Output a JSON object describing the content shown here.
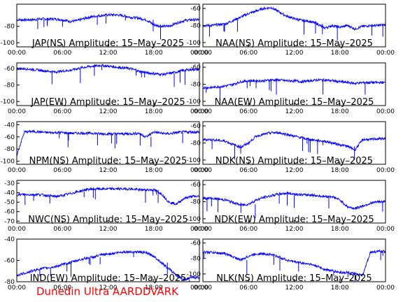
{
  "footer": {
    "text": "Dunedin Ultra AARDDVARK",
    "color": "#ff0000"
  },
  "colors": {
    "trace": "#0000ff",
    "axes": "#000000",
    "background": "#ffffff"
  },
  "chart_data": [
    {
      "type": "line",
      "title": "JAP(NS) Amplitude: 15–May–2025",
      "x_ticks": [
        "00:00",
        "06:00",
        "12:00",
        "18:00",
        "00:00"
      ],
      "y_ticks": [
        "-100",
        "-80"
      ],
      "ylim": [
        -105,
        -53
      ],
      "xlim_hours": [
        0,
        24
      ],
      "x_hours": [
        0,
        1,
        2,
        3,
        4,
        5,
        6,
        7,
        8,
        9,
        10,
        11,
        12,
        13,
        14,
        15,
        16,
        17,
        18,
        19,
        20,
        21,
        22,
        23,
        24
      ],
      "values": [
        -72,
        -72,
        -72,
        -71,
        -71,
        -71,
        -72,
        -74,
        -73,
        -70,
        -68,
        -67,
        -66,
        -66,
        -67,
        -69,
        -70,
        -72,
        -78,
        -80,
        -80,
        -76,
        -73,
        -72,
        -72
      ]
    },
    {
      "type": "line",
      "title": "NAA(NS) Amplitude: 15–May–2025",
      "x_ticks": [
        "00:00",
        "06:00",
        "12:00",
        "18:00",
        "00:00"
      ],
      "y_ticks": [
        "-100",
        "-80",
        "-60"
      ],
      "ylim": [
        -105,
        -55
      ],
      "xlim_hours": [
        0,
        24
      ],
      "x_hours": [
        0,
        1,
        2,
        3,
        4,
        5,
        6,
        7,
        8,
        9,
        10,
        11,
        12,
        13,
        14,
        15,
        16,
        17,
        18,
        19,
        20,
        21,
        22,
        23,
        24
      ],
      "values": [
        -80,
        -80,
        -79,
        -78,
        -74,
        -70,
        -66,
        -63,
        -60,
        -59,
        -64,
        -69,
        -72,
        -74,
        -75,
        -78,
        -83,
        -80,
        -82,
        -80,
        -84,
        -81,
        -80,
        -80,
        -79
      ]
    },
    {
      "type": "line",
      "title": "JAP(EW) Amplitude: 15–May–2025",
      "x_ticks": [
        "00:00",
        "06:00",
        "12:00",
        "18:00",
        "00:00"
      ],
      "y_ticks": [
        "-100",
        "-80",
        "-60"
      ],
      "ylim": [
        -105,
        -53
      ],
      "xlim_hours": [
        0,
        24
      ],
      "x_hours": [
        0,
        1,
        2,
        3,
        4,
        5,
        6,
        7,
        8,
        9,
        10,
        11,
        12,
        13,
        14,
        15,
        16,
        17,
        18,
        19,
        20,
        21,
        22,
        23,
        24
      ],
      "values": [
        -60,
        -60,
        -61,
        -62,
        -63,
        -64,
        -63,
        -62,
        -60,
        -58,
        -57,
        -56,
        -57,
        -58,
        -59,
        -60,
        -63,
        -65,
        -66,
        -67,
        -66,
        -64,
        -62,
        -61,
        -61
      ]
    },
    {
      "type": "line",
      "title": "NAA(EW) Amplitude: 15–May–2025",
      "x_ticks": [
        "00:00",
        "06:00",
        "12:00",
        "18:00",
        "00:00"
      ],
      "y_ticks": [
        "-100",
        "-80",
        "-60"
      ],
      "ylim": [
        -105,
        -55
      ],
      "xlim_hours": [
        0,
        24
      ],
      "x_hours": [
        0,
        1,
        2,
        3,
        4,
        5,
        6,
        7,
        8,
        9,
        10,
        11,
        12,
        13,
        14,
        15,
        16,
        17,
        18,
        19,
        20,
        21,
        22,
        23,
        24
      ],
      "values": [
        -84,
        -84,
        -83,
        -82,
        -80,
        -77,
        -76,
        -76,
        -76,
        -75,
        -75,
        -76,
        -76,
        -77,
        -76,
        -75,
        -75,
        -76,
        -77,
        -78,
        -79,
        -78,
        -78,
        -78,
        -78
      ]
    },
    {
      "type": "line",
      "title": "NPM(NS) Amplitude: 15–May–2025",
      "x_ticks": [
        "00:00",
        "06:00",
        "12:00",
        "18:00",
        "00:00"
      ],
      "y_ticks": [
        "-100",
        "-80",
        "-60",
        "-40"
      ],
      "ylim": [
        -105,
        -35
      ],
      "xlim_hours": [
        0,
        24
      ],
      "x_hours": [
        0,
        1,
        2,
        3,
        4,
        5,
        6,
        7,
        8,
        9,
        10,
        11,
        12,
        13,
        14,
        15,
        16,
        17,
        18,
        19,
        20,
        21,
        22,
        23,
        24
      ],
      "values": [
        -90,
        -52,
        -51,
        -52,
        -53,
        -53,
        -53,
        -54,
        -54,
        -54,
        -54,
        -55,
        -55,
        -55,
        -55,
        -55,
        -54,
        -60,
        -52,
        -54,
        -55,
        -53,
        -52,
        -52,
        -52
      ]
    },
    {
      "type": "line",
      "title": "NDK(NS) Amplitude: 15–May–2025",
      "x_ticks": [
        "00:00",
        "06:00",
        "12:00",
        "18:00",
        "00:00"
      ],
      "y_ticks": [
        "-100",
        "-80",
        "-60"
      ],
      "ylim": [
        -105,
        -55
      ],
      "xlim_hours": [
        0,
        24
      ],
      "x_hours": [
        0,
        1,
        2,
        3,
        4,
        5,
        6,
        7,
        8,
        9,
        10,
        11,
        12,
        13,
        14,
        15,
        16,
        17,
        18,
        19,
        20,
        21,
        22,
        23,
        24
      ],
      "values": [
        -76,
        -76,
        -77,
        -78,
        -82,
        -85,
        -80,
        -72,
        -70,
        -68,
        -68,
        -70,
        -72,
        -74,
        -76,
        -77,
        -78,
        -80,
        -82,
        -84,
        -88,
        -76,
        -76,
        -75,
        -75
      ]
    },
    {
      "type": "line",
      "title": "NWC(NS) Amplitude: 15–May–2025",
      "x_ticks": [
        "00:00",
        "06:00",
        "12:00",
        "18:00",
        "00:00"
      ],
      "y_ticks": [
        "-70",
        "-60",
        "-50",
        "-40",
        "-30"
      ],
      "ylim": [
        -72,
        -27
      ],
      "xlim_hours": [
        0,
        24
      ],
      "x_hours": [
        0,
        1,
        2,
        3,
        4,
        5,
        6,
        7,
        8,
        9,
        10,
        11,
        12,
        13,
        14,
        15,
        16,
        17,
        18,
        19,
        20,
        21,
        22,
        23,
        24
      ],
      "values": [
        -42,
        -42,
        -42,
        -42,
        -43,
        -44,
        -43,
        -41,
        -39,
        -37,
        -36,
        -36,
        -36,
        -36,
        -36,
        -36,
        -37,
        -37,
        -37,
        -41,
        -50,
        -52,
        -46,
        -44,
        -44
      ]
    },
    {
      "type": "line",
      "title": "NDK(EW) Amplitude: 15–May–2025",
      "x_ticks": [
        "00:00",
        "06:00",
        "12:00",
        "18:00",
        "00:00"
      ],
      "y_ticks": [
        "-100",
        "-80",
        "-60"
      ],
      "ylim": [
        -105,
        -55
      ],
      "xlim_hours": [
        0,
        24
      ],
      "x_hours": [
        0,
        1,
        2,
        3,
        4,
        5,
        6,
        7,
        8,
        9,
        10,
        11,
        12,
        13,
        14,
        15,
        16,
        17,
        18,
        19,
        20,
        21,
        22,
        23,
        24
      ],
      "values": [
        -76,
        -76,
        -77,
        -78,
        -81,
        -84,
        -83,
        -78,
        -75,
        -73,
        -71,
        -70,
        -71,
        -72,
        -72,
        -73,
        -74,
        -74,
        -78,
        -86,
        -88,
        -85,
        -82,
        -80,
        -80
      ]
    },
    {
      "type": "line",
      "title": "IND(EW) Amplitude: 15–May–2025",
      "x_ticks": [
        "00:00",
        "06:00",
        "12:00",
        "18:00",
        "00:00"
      ],
      "y_ticks": [
        "-80",
        "-60",
        "-40"
      ],
      "ylim": [
        -80,
        -40
      ],
      "xlim_hours": [
        0,
        24
      ],
      "x_hours": [
        0,
        1,
        2,
        3,
        4,
        5,
        6,
        7,
        8,
        9,
        10,
        11,
        12,
        13,
        14,
        15,
        16,
        17,
        18,
        19,
        20,
        21,
        22,
        23,
        24
      ],
      "values": [
        -74,
        -72,
        -70,
        -68,
        -67,
        -66,
        -64,
        -62,
        -60,
        -58,
        -57,
        -55,
        -54,
        -53,
        -52,
        -52,
        -52,
        -53,
        -56,
        -62,
        -68,
        -74,
        -78,
        -76,
        -76
      ]
    },
    {
      "type": "line",
      "title": "NLK(NS) Amplitude: 15–May–2025",
      "x_ticks": [
        "00:00",
        "06:00",
        "12:00",
        "18:00",
        "00:00"
      ],
      "y_ticks": [
        "-100",
        "-80",
        "-60"
      ],
      "ylim": [
        -110,
        -55
      ],
      "xlim_hours": [
        0,
        24
      ],
      "x_hours": [
        0,
        1,
        2,
        3,
        4,
        5,
        6,
        7,
        8,
        9,
        10,
        11,
        12,
        13,
        14,
        15,
        16,
        17,
        18,
        19,
        20,
        21,
        22,
        23,
        24
      ],
      "values": [
        -72,
        -72,
        -73,
        -74,
        -78,
        -82,
        -77,
        -74,
        -74,
        -75,
        -78,
        -82,
        -84,
        -86,
        -87,
        -90,
        -94,
        -96,
        -98,
        -98,
        -100,
        -102,
        -72,
        -71,
        -71
      ]
    }
  ]
}
